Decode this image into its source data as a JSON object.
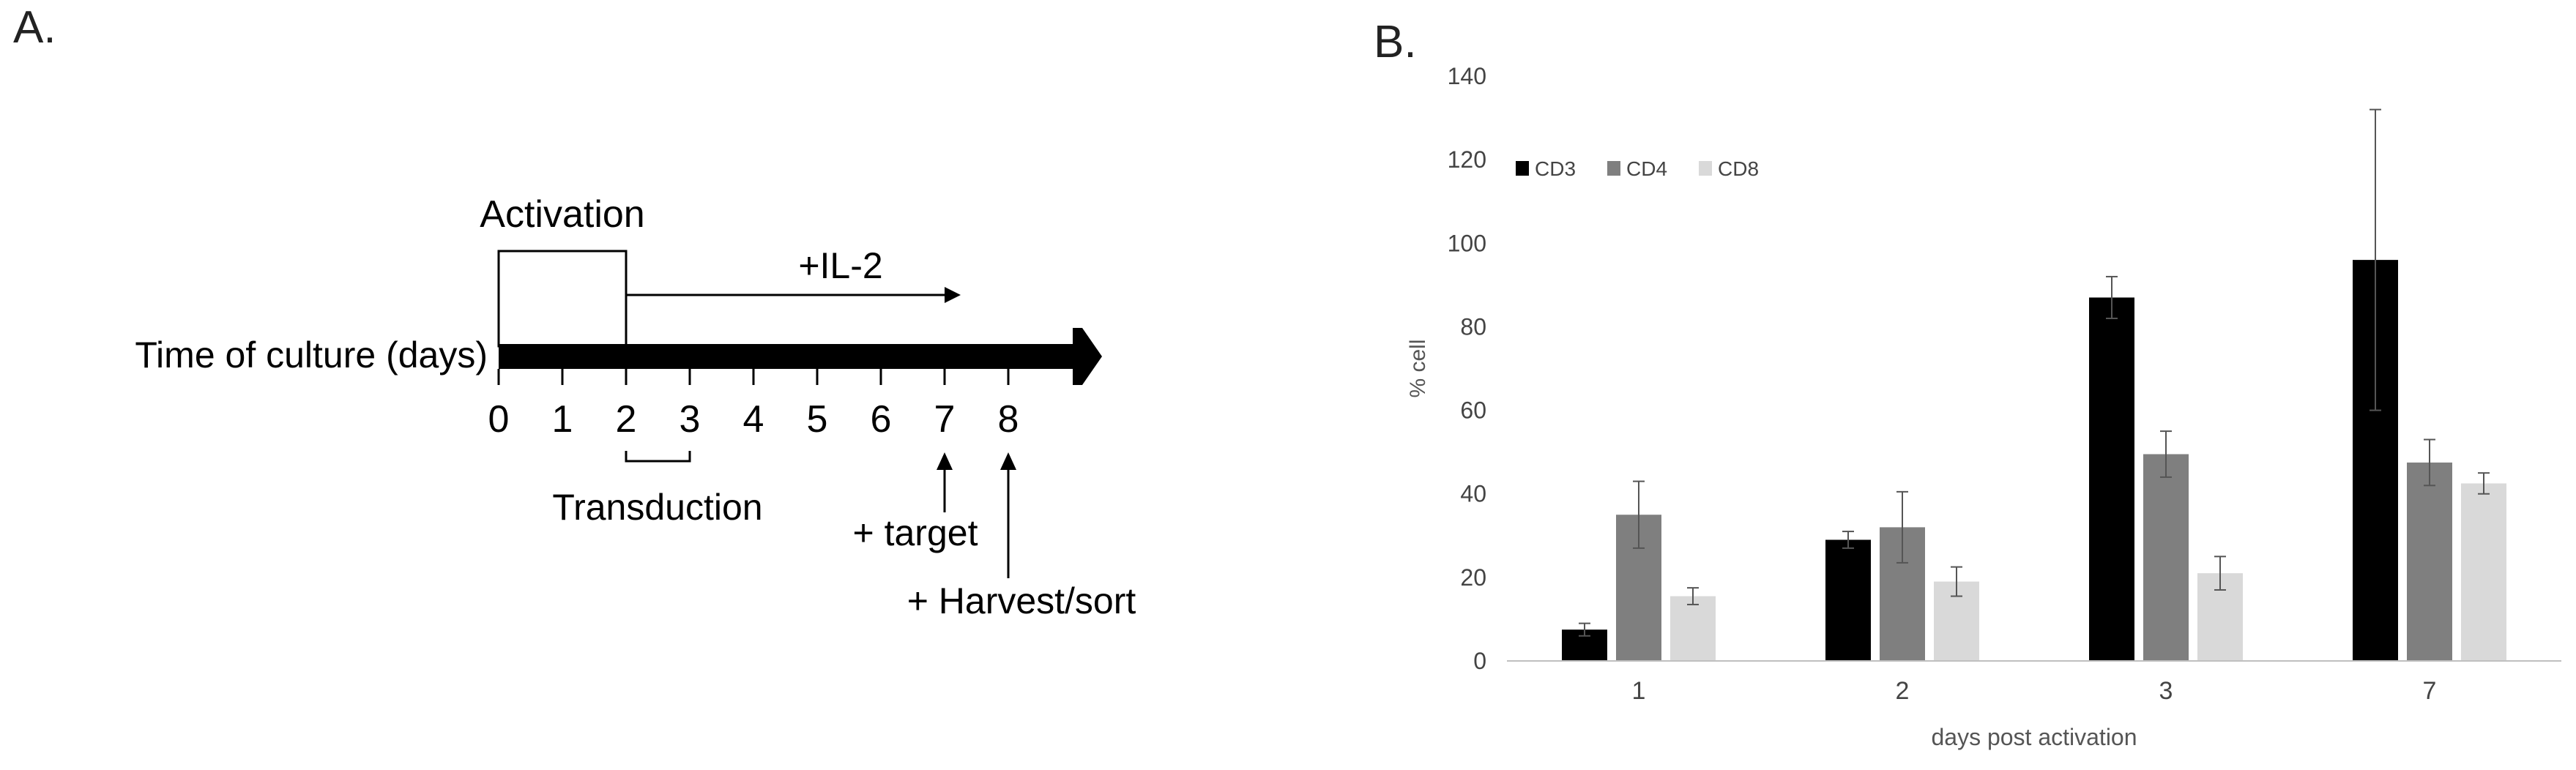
{
  "panel_a": {
    "letter": "A.",
    "activation_label": "Activation",
    "il2_label": "+IL-2",
    "timeline_label": "Time of culture (days)",
    "day_ticks": [
      "0",
      "1",
      "2",
      "3",
      "4",
      "5",
      "6",
      "7",
      "8"
    ],
    "transduction_label": "Transduction",
    "target_label": "+ target",
    "harvest_label": "+ Harvest/sort"
  },
  "panel_b": {
    "letter": "B.",
    "chart_data": {
      "type": "bar",
      "categories": [
        "1",
        "2",
        "3",
        "7"
      ],
      "series": [
        {
          "name": "CD3",
          "color": "#000000",
          "values": [
            7.5,
            29,
            87,
            96
          ],
          "errors": [
            1.5,
            2,
            5,
            36
          ]
        },
        {
          "name": "CD4",
          "color": "#7f7f7f",
          "values": [
            35,
            32,
            49.5,
            47.5
          ],
          "errors": [
            8,
            8.5,
            5.5,
            5.5
          ]
        },
        {
          "name": "CD8",
          "color": "#d9d9d9",
          "values": [
            15.5,
            19,
            21,
            42.5
          ],
          "errors": [
            2,
            3.5,
            4,
            2.5
          ]
        }
      ],
      "ylabel": "% cell",
      "xlabel": "days post activation",
      "ylim": [
        0,
        140
      ],
      "yticks": [
        "0",
        "20",
        "40",
        "60",
        "80",
        "100",
        "120",
        "140"
      ],
      "legend_position": "top-left",
      "grid": false
    }
  }
}
